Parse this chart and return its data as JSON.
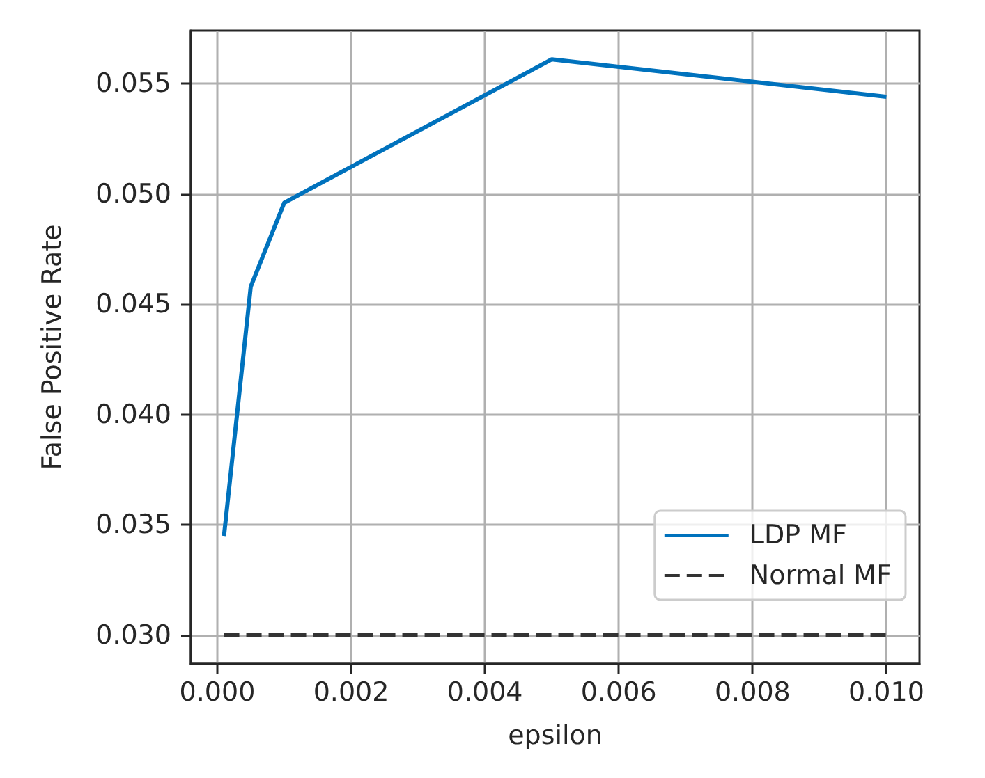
{
  "chart_data": {
    "type": "line",
    "xlabel": "epsilon",
    "ylabel": "False Positive Rate",
    "x": [
      0.0001,
      0.0005,
      0.001,
      0.005,
      0.01
    ],
    "xlim": [
      -0.000395,
      0.010495
    ],
    "xticks": [
      {
        "value": 0,
        "label": "0.000"
      },
      0.002,
      0.004,
      0.006,
      0.008,
      {
        "value": 0.01,
        "label": "0.010"
      }
    ],
    "ylim": [
      0.0287,
      0.0574
    ],
    "yticks": [
      {
        "value": 0.03,
        "label": "0.030"
      },
      0.035,
      {
        "value": 0.04,
        "label": "0.040"
      },
      0.045,
      {
        "value": 0.05,
        "label": "0.050"
      },
      0.055
    ],
    "grid": true,
    "legend": "bottom right",
    "marker": "none",
    "series": [
      {
        "name": "LDP MF",
        "color": "#0072bd",
        "line_style": "solid",
        "values": [
          0.0345,
          0.0458,
          0.0496,
          0.0561,
          0.0544
        ]
      },
      {
        "name": "Normal MF",
        "color": "#333333",
        "line_style": "dashed",
        "values": [
          0.03,
          0.03,
          0.03,
          0.03,
          0.03
        ]
      }
    ]
  }
}
